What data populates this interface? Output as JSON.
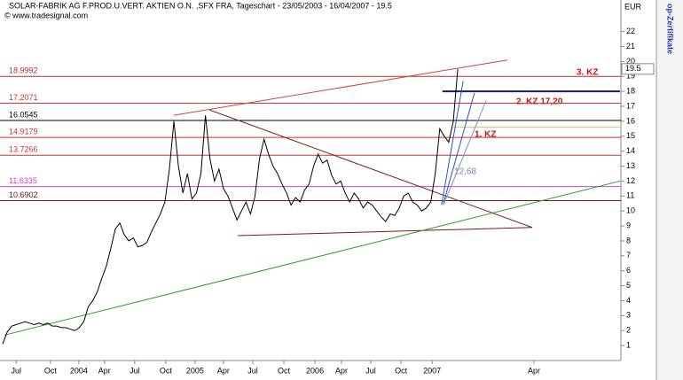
{
  "chart_data": {
    "type": "line",
    "title": "SOLAR-FABRIK AG F.PROD.U.VERT. AKTIEN O.N. ,SFX FRA, Tageschart - 23/05/2003 - 16/04/2007 - 19.5",
    "credit": "© www.tradesignal.com",
    "axis_unit": "EUR",
    "side_label": "op-Zertifikate",
    "series": [
      {
        "name": "SFX",
        "color": "#000000",
        "values": [
          1.1,
          1.9,
          2.3,
          2.4,
          2.5,
          2.6,
          2.5,
          2.4,
          2.5,
          2.4,
          2.5,
          2.3,
          2.3,
          2.2,
          2.2,
          2.1,
          2.0,
          2.2,
          2.6,
          3.6,
          4.0,
          4.6,
          5.5,
          6.3,
          7.5,
          8.8,
          9.2,
          8.4,
          8.0,
          8.2,
          7.6,
          7.7,
          7.9,
          8.6,
          9.2,
          9.8,
          10.6,
          12.8,
          16.0,
          13.0,
          11.2,
          12.5,
          10.8,
          11.2,
          12.5,
          16.4,
          13.5,
          12.0,
          12.8,
          11.5,
          11.0,
          10.2,
          9.4,
          10.0,
          10.6,
          9.8,
          11.0,
          13.5,
          14.8,
          13.8,
          13.0,
          12.5,
          11.8,
          11.2,
          10.4,
          10.9,
          10.6,
          11.4,
          11.8,
          13.0,
          13.8,
          13.2,
          13.4,
          12.4,
          11.8,
          12.0,
          11.2,
          10.6,
          11.2,
          10.8,
          10.2,
          10.6,
          10.4,
          10.0,
          9.6,
          9.3,
          9.8,
          9.7,
          10.2,
          11.0,
          11.2,
          10.6,
          10.4,
          10.0,
          10.2,
          10.6,
          12.5,
          15.5,
          15.0,
          14.6,
          16.0,
          19.5
        ]
      }
    ],
    "xlim": [
      0,
      137
    ],
    "xticks": [
      {
        "value": 3,
        "label": "Jul"
      },
      {
        "value": 10.6,
        "label": "Oct"
      },
      {
        "value": 16.9,
        "label": "2004"
      },
      {
        "value": 22.6,
        "label": "Apr"
      },
      {
        "value": 29.3,
        "label": "Jul"
      },
      {
        "value": 36.2,
        "label": "Oct"
      },
      {
        "value": 42.7,
        "label": "2005"
      },
      {
        "value": 49,
        "label": "Apr"
      },
      {
        "value": 55.5,
        "label": "Jul"
      },
      {
        "value": 62.4,
        "label": "Oct"
      },
      {
        "value": 69.3,
        "label": "2006"
      },
      {
        "value": 75.2,
        "label": "Apr"
      },
      {
        "value": 81.7,
        "label": "Jul"
      },
      {
        "value": 88.4,
        "label": "Oct"
      },
      {
        "value": 95.3,
        "label": "2007"
      },
      {
        "value": 117.9,
        "label": "Apr"
      }
    ],
    "ylim": [
      0,
      23.4
    ],
    "yticks": [
      1,
      2,
      3,
      4,
      5,
      6,
      7,
      8,
      9,
      10,
      11,
      12,
      13,
      14,
      15,
      16,
      17,
      18,
      19,
      20,
      21,
      22
    ],
    "levels": [
      {
        "value": 18.9992,
        "color": "#b03030"
      },
      {
        "value": 17.2071,
        "color": "#cc3333"
      },
      {
        "value": 16.0545,
        "color": "#000000"
      },
      {
        "value": 14.9179,
        "color": "#cc3333"
      },
      {
        "value": 13.7266,
        "color": "#cc3333"
      },
      {
        "value": 11.6335,
        "color": "#cc44cc"
      },
      {
        "value": 10.6902,
        "color": "#6b1a1a"
      }
    ],
    "trendlines": [
      {
        "x": [
          38,
          112
        ],
        "y": [
          16.4,
          20.1
        ],
        "color": "#d04040"
      },
      {
        "x": [
          45.9,
          117.5
        ],
        "y": [
          16.76,
          8.9
        ],
        "color": "#7a1a1a"
      },
      {
        "x": [
          52.2,
          117.5
        ],
        "y": [
          8.35,
          8.9
        ],
        "color": "#7a1a1a"
      },
      {
        "x": [
          0.4,
          137
        ],
        "y": [
          1.7,
          12.0
        ],
        "color": "#2a9a2a"
      },
      {
        "x": [
          97.6,
          137
        ],
        "y": [
          18.0,
          18.0
        ],
        "color": "#1a1a6a"
      },
      {
        "x": [
          100,
          137
        ],
        "y": [
          15.6,
          15.6
        ],
        "color": "#d8c060"
      },
      {
        "x": [
          97.4,
          102.2
        ],
        "y": [
          10.4,
          18.7
        ],
        "color": "#3050c0"
      },
      {
        "x": [
          97.8,
          104.7
        ],
        "y": [
          10.5,
          17.9
        ],
        "color": "#3050c0"
      },
      {
        "x": [
          97.8,
          107.3
        ],
        "y": [
          10.4,
          17.4
        ],
        "color": "#8090c0"
      }
    ],
    "annotations": [
      "3. KZ",
      "2. KZ 17,20",
      "1. KZ",
      "12,68"
    ]
  }
}
